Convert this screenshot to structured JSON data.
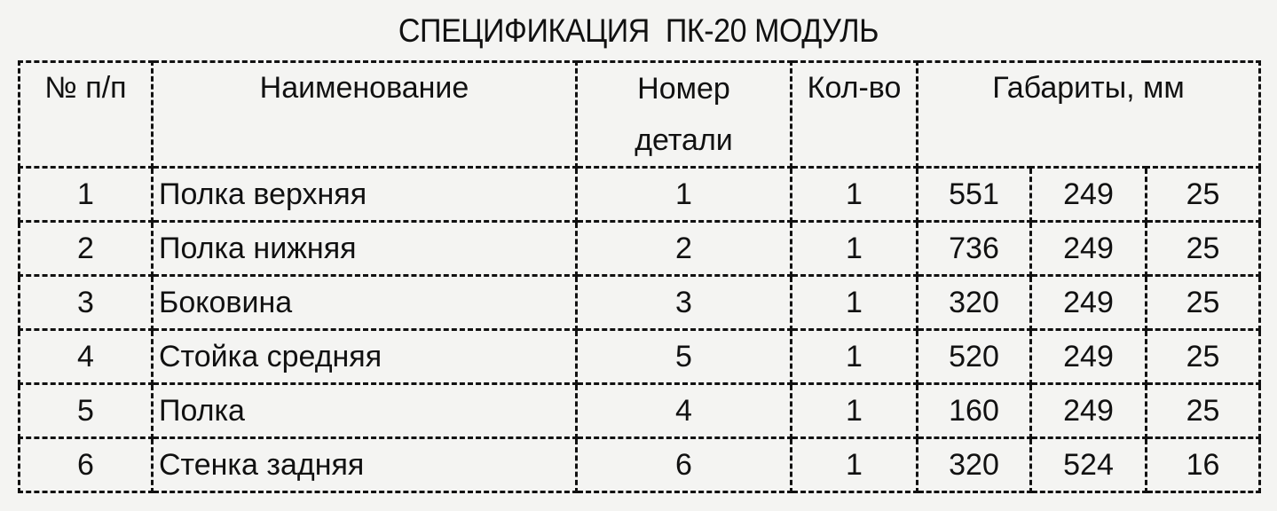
{
  "title": "СПЕЦИФИКАЦИЯ  ПК-20 МОДУЛЬ",
  "headers": {
    "index": "№ п/п",
    "name": "Наименование",
    "part_number": "Номер детали",
    "quantity": "Кол-во",
    "dimensions": "Габариты, мм"
  },
  "rows": [
    {
      "index": "1",
      "name": "Полка верхняя",
      "part_number": "1",
      "quantity": "1",
      "dims": [
        "551",
        "249",
        "25"
      ]
    },
    {
      "index": "2",
      "name": "Полка нижняя",
      "part_number": "2",
      "quantity": "1",
      "dims": [
        "736",
        "249",
        "25"
      ]
    },
    {
      "index": "3",
      "name": "Боковина",
      "part_number": "3",
      "quantity": "1",
      "dims": [
        "320",
        "249",
        "25"
      ]
    },
    {
      "index": "4",
      "name": "Стойка средняя",
      "part_number": "5",
      "quantity": "1",
      "dims": [
        "520",
        "249",
        "25"
      ]
    },
    {
      "index": "5",
      "name": "Полка",
      "part_number": "4",
      "quantity": "1",
      "dims": [
        "160",
        "249",
        "25"
      ]
    },
    {
      "index": "6",
      "name": "Стенка задняя",
      "part_number": "6",
      "quantity": "1",
      "dims": [
        "320",
        "524",
        "16"
      ]
    }
  ]
}
